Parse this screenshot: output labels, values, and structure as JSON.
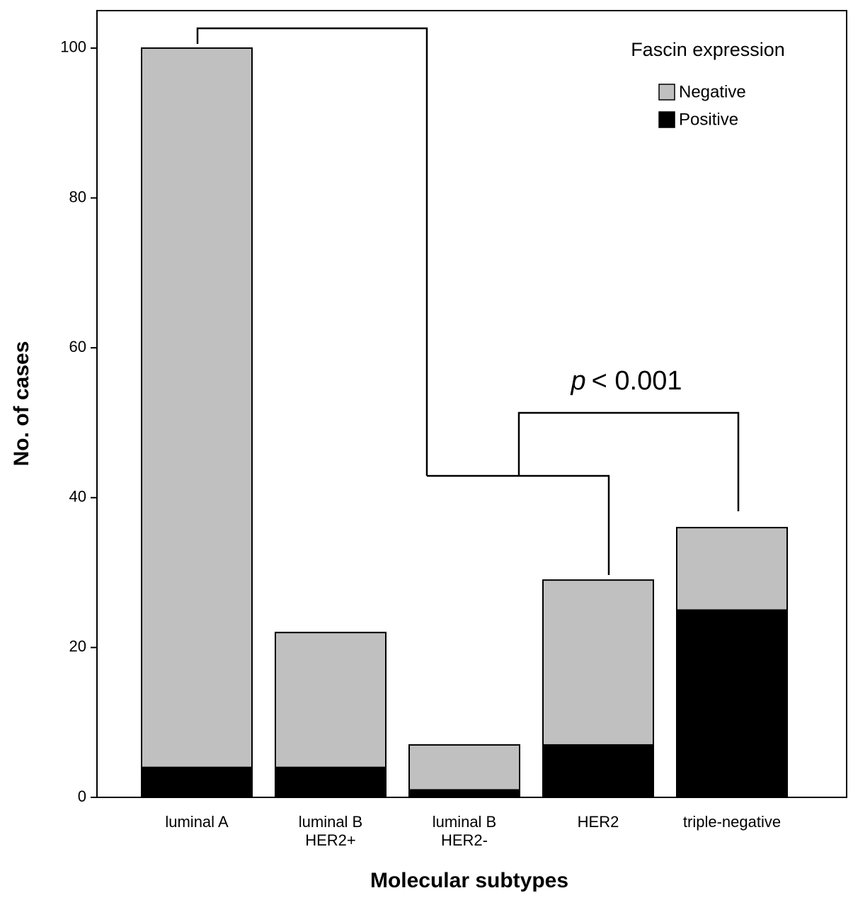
{
  "chart_data": {
    "type": "stacked_bar",
    "x_label": "Molecular subtypes",
    "y_label": "No. of cases",
    "legend_title": "Fascin expression",
    "legend_position": "upper right",
    "annotation": [
      "p",
      "< 0.001"
    ],
    "categories": [
      [
        "luminal A"
      ],
      [
        "luminal B",
        "HER2+"
      ],
      [
        "luminal B",
        "HER2-"
      ],
      [
        "HER2"
      ],
      [
        "triple-negative"
      ]
    ],
    "series": [
      {
        "name": "Negative",
        "color": "#c0c0c0",
        "values": [
          96,
          18,
          6,
          22,
          11
        ]
      },
      {
        "name": "Positive",
        "color": "#000000",
        "values": [
          4,
          4,
          1,
          7,
          25
        ]
      }
    ],
    "ylim": [
      0,
      105
    ],
    "yticks": [
      0,
      20,
      40,
      60,
      80,
      100
    ]
  }
}
